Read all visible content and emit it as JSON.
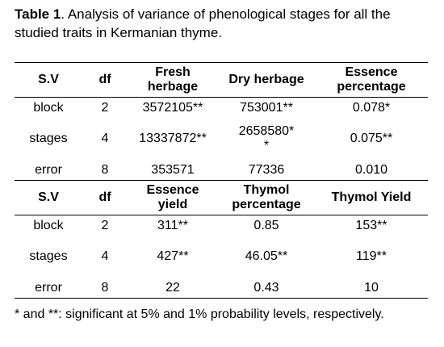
{
  "title": {
    "label": "Table 1",
    "text": ". Analysis of variance of phenological stages for all the studied traits in Kermanian thyme."
  },
  "table": {
    "sections": [
      {
        "header": [
          "S.V",
          "df",
          "Fresh herbage",
          "Dry herbage",
          "Essence percentage"
        ],
        "rows": [
          [
            "block",
            "2",
            "3572105**",
            "753001**",
            "0.078*"
          ],
          [
            "stages",
            "4",
            "13337872**",
            "2658580**",
            "0.075**"
          ],
          [
            "error",
            "8",
            "353571",
            "77336",
            "0.010"
          ]
        ]
      },
      {
        "header": [
          "S.V",
          "df",
          "Essence yield",
          "Thymol percentage",
          "Thymol Yield"
        ],
        "rows": [
          [
            "block",
            "2",
            "311**",
            "0.85",
            "153**"
          ],
          [
            "stages",
            "4",
            "427**",
            "46.05**",
            "119**"
          ],
          [
            "error",
            "8",
            "22",
            "0.43",
            "10"
          ]
        ]
      }
    ]
  },
  "footnote": "* and **: significant at 5% and 1% probability levels, respectively."
}
